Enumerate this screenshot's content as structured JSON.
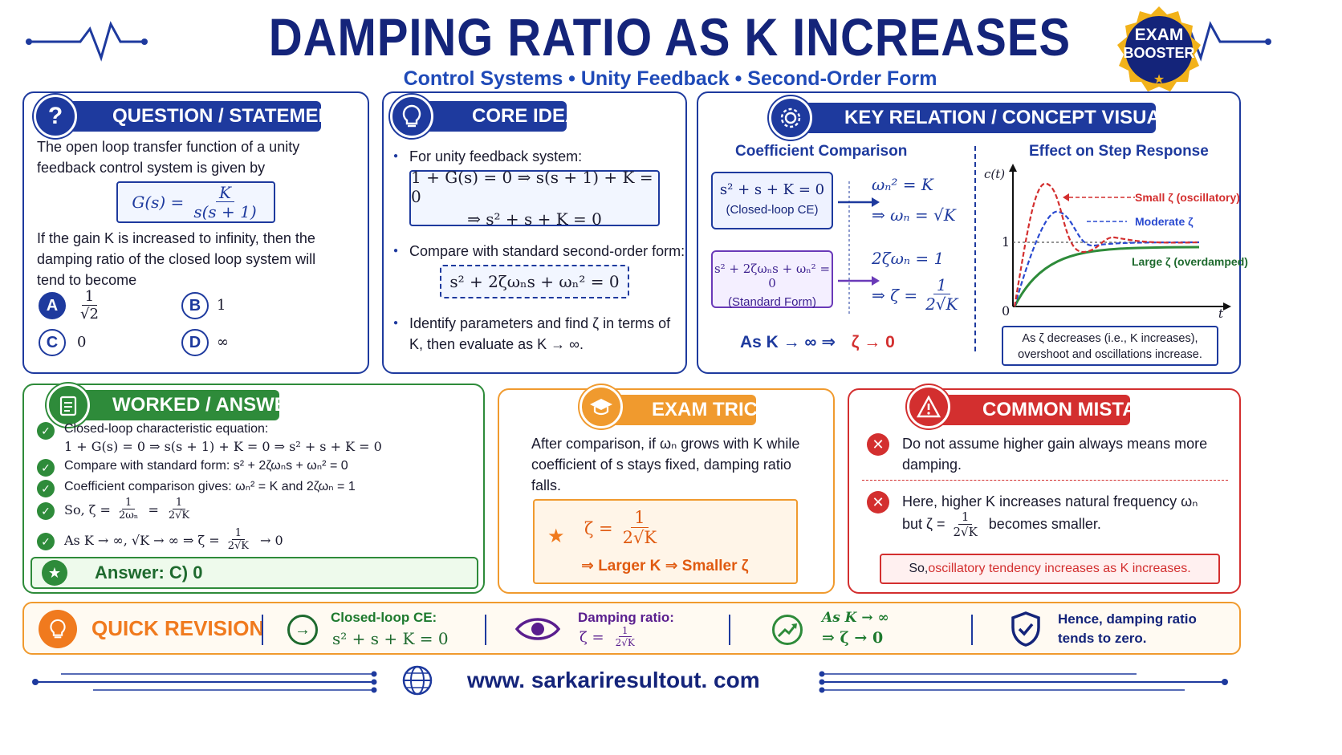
{
  "header": {
    "title": "DAMPING RATIO AS K INCREASES",
    "subtitle": "Control Systems  •  Unity Feedback  •  Second-Order Form",
    "badge_line1": "EXAM",
    "badge_line2": "BOOSTER"
  },
  "question": {
    "heading": "QUESTION / STATEMENT",
    "icon_glyph": "?",
    "intro": "The open loop transfer function of a unity feedback control system is given by",
    "tf_lhs": "G(s) =",
    "tf_num": "K",
    "tf_den": "s(s + 1)",
    "prompt": "If the gain K is increased to infinity, then the damping ratio of the closed loop system will tend to become",
    "options": [
      {
        "letter": "A",
        "value_num": "1",
        "value_den": "√2"
      },
      {
        "letter": "B",
        "value": "1"
      },
      {
        "letter": "C",
        "value": "0"
      },
      {
        "letter": "D",
        "value": "∞"
      }
    ]
  },
  "core": {
    "heading": "CORE IDEA",
    "b1": "For unity feedback system:",
    "eq1_line1": "1 + G(s) = 0 ⇒ s(s + 1) + K = 0",
    "eq1_line2": "⇒  s² + s + K = 0",
    "b2": "Compare with standard second-order form:",
    "eq2": "s² + 2ζωₙs + ωₙ² = 0",
    "b3": "Identify parameters and find ζ in terms of K, then evaluate as K → ∞."
  },
  "key": {
    "heading": "KEY RELATION / CONCEPT VISUAL",
    "coef_title": "Coefficient Comparison",
    "box1_eq": "s² + s + K = 0",
    "box1_label": "(Closed-loop CE)",
    "box2_eq": "s² + 2ζωₙs + ωₙ² = 0",
    "box2_label": "(Standard Form)",
    "r1": "ωₙ² = K",
    "r2": "⇒ ωₙ = √K",
    "r3": "2ζωₙ = 1",
    "r4_lhs": "⇒ ζ =",
    "r4_num": "1",
    "r4_den": "2√K",
    "limit_lhs": "As  K → ∞   ⇒",
    "limit_rhs": "ζ → 0",
    "graph_title": "Effect on Step Response",
    "y_axis": "c(t)",
    "x_axis": "t",
    "y_one": "1",
    "y_zero": "0",
    "legend_small": "Small ζ (oscillatory)",
    "legend_moderate": "Moderate ζ",
    "legend_large": "Large ζ (overdamped)",
    "note": "As ζ decreases (i.e., K increases), overshoot and oscillations increase."
  },
  "worked": {
    "heading": "WORKED / ANSWER",
    "s1": "Closed-loop characteristic equation:",
    "s1_eq": "1 + G(s) = 0 ⇒ s(s + 1) + K = 0 ⇒ s² + s + K = 0",
    "s2": "Compare with standard form:  s² + 2ζωₙs + ωₙ² = 0",
    "s3": "Coefficient comparison gives:   ωₙ² = K  and  2ζωₙ = 1",
    "s4_lhs": "So,  ζ =",
    "s4_f1_num": "1",
    "s4_f1_den": "2ωₙ",
    "s4_f2_num": "1",
    "s4_f2_den": "2√K",
    "s5_lhs": "As K → ∞,  √K → ∞   ⇒  ζ =",
    "s5_num": "1",
    "s5_den": "2√K",
    "s5_rhs": "→ 0",
    "answer": "Answer:  C) 0"
  },
  "trick": {
    "heading": "EXAM TRICK",
    "text": "After comparison, if ωₙ grows with K while coefficient of s stays fixed, damping ratio falls.",
    "eq_lhs": "ζ =",
    "eq_num": "1",
    "eq_den": "2√K",
    "conclusion": "⇒ Larger K  ⇒ Smaller ζ"
  },
  "mistake": {
    "heading": "COMMON MISTAKE",
    "m1": "Do not assume higher gain always means more damping.",
    "m2_line1": "Here, higher K increases natural frequency ωₙ",
    "m2_but": "but ζ =",
    "m2_num": "1",
    "m2_den": "2√K",
    "m2_end": "becomes smaller.",
    "note_prefix": "So, ",
    "note_main": "oscillatory tendency increases as K increases."
  },
  "quick": {
    "label": "QUICK REVISION",
    "i1_title": "Closed-loop CE:",
    "i1_val": "s² + s + K = 0",
    "i2_title": "Damping ratio:",
    "i2_lhs": "ζ  =",
    "i2_num": "1",
    "i2_den": "2√K",
    "i3_line1": "As  K → ∞",
    "i3_line2": "⇒ ζ → 0",
    "i4_line1": "Hence, damping ratio",
    "i4_line2": "tends to zero."
  },
  "footer": {
    "url": "www. sarkariresultout. com"
  },
  "colors": {
    "navy": "#14247a",
    "blue": "#1e3a9e",
    "green": "#2e8b3a",
    "orange": "#f09a2e",
    "red": "#d32f2f"
  }
}
